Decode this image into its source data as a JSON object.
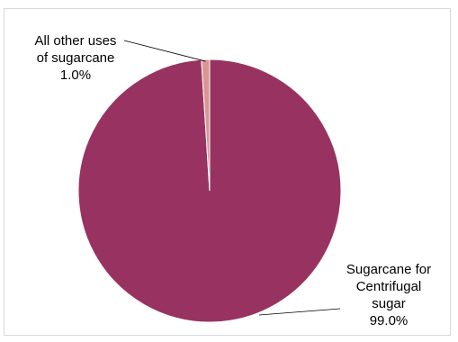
{
  "chart_data": {
    "type": "pie",
    "title": "",
    "slices": [
      {
        "label_lines": [
          "Sugarcane for",
          "Centrifugal",
          "sugar"
        ],
        "value": 99.0,
        "value_label": "99.0%",
        "color": "#983361"
      },
      {
        "label_lines": [
          "All other uses",
          "of sugarcane"
        ],
        "value": 1.0,
        "value_label": "1.0%",
        "color": "#d99594"
      }
    ],
    "legend": "none",
    "data_labels": "outside with leader lines"
  }
}
